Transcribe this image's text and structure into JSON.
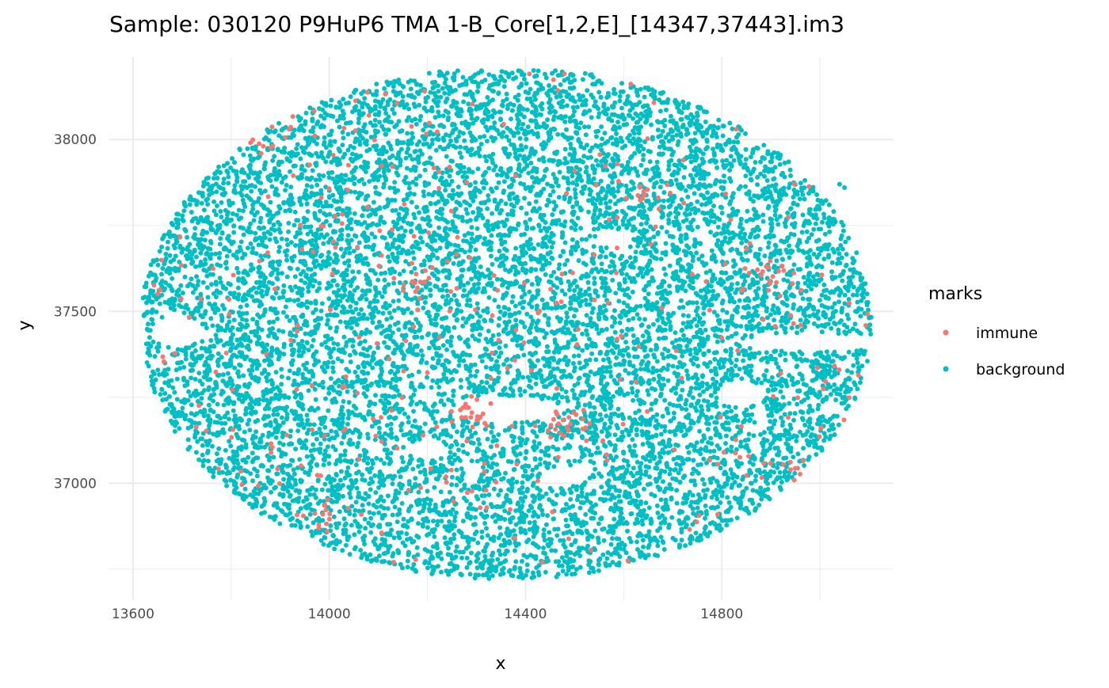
{
  "chart_data": {
    "type": "scatter",
    "title": "Sample: 030120 P9HuP6 TMA 1-B_Core[1,2,E]_[14347,37443].im3",
    "xlabel": "x",
    "ylabel": "y",
    "xlim": [
      13550,
      15150
    ],
    "ylim": [
      36660,
      38240
    ],
    "x_ticks": [
      13600,
      14000,
      14400,
      14800
    ],
    "y_ticks": [
      37000,
      37500,
      38000
    ],
    "grid": true,
    "legend": {
      "title": "marks",
      "position": "right"
    },
    "series": [
      {
        "name": "immune",
        "color": "#F8766D",
        "approx_count": 420
      },
      {
        "name": "background",
        "color": "#00BFC4",
        "approx_count": 10500
      }
    ],
    "point_cloud": {
      "shape": "ellipse",
      "x_range": [
        13620,
        15110
      ],
      "y_range": [
        36720,
        38210
      ],
      "center": [
        14360,
        37465
      ],
      "gaps": [
        {
          "x": 14360,
          "y": 37215,
          "rx": 110,
          "ry": 38
        },
        {
          "x": 14980,
          "y": 37410,
          "rx": 140,
          "ry": 28
        },
        {
          "x": 13690,
          "y": 37440,
          "rx": 55,
          "ry": 45
        },
        {
          "x": 14200,
          "y": 37100,
          "rx": 40,
          "ry": 30
        },
        {
          "x": 14480,
          "y": 37020,
          "rx": 50,
          "ry": 30
        },
        {
          "x": 14580,
          "y": 37710,
          "rx": 40,
          "ry": 25
        },
        {
          "x": 14840,
          "y": 37260,
          "rx": 45,
          "ry": 40
        }
      ],
      "immune_clusters": [
        {
          "x": 14290,
          "y": 37190
        },
        {
          "x": 14490,
          "y": 37170
        },
        {
          "x": 13990,
          "y": 36900
        },
        {
          "x": 14170,
          "y": 37590
        },
        {
          "x": 14630,
          "y": 37840
        },
        {
          "x": 14890,
          "y": 37600
        },
        {
          "x": 13860,
          "y": 38010
        },
        {
          "x": 14950,
          "y": 37040
        }
      ],
      "outliers": [
        [
          15040,
          37870
        ],
        [
          15050,
          37860
        ]
      ]
    }
  }
}
